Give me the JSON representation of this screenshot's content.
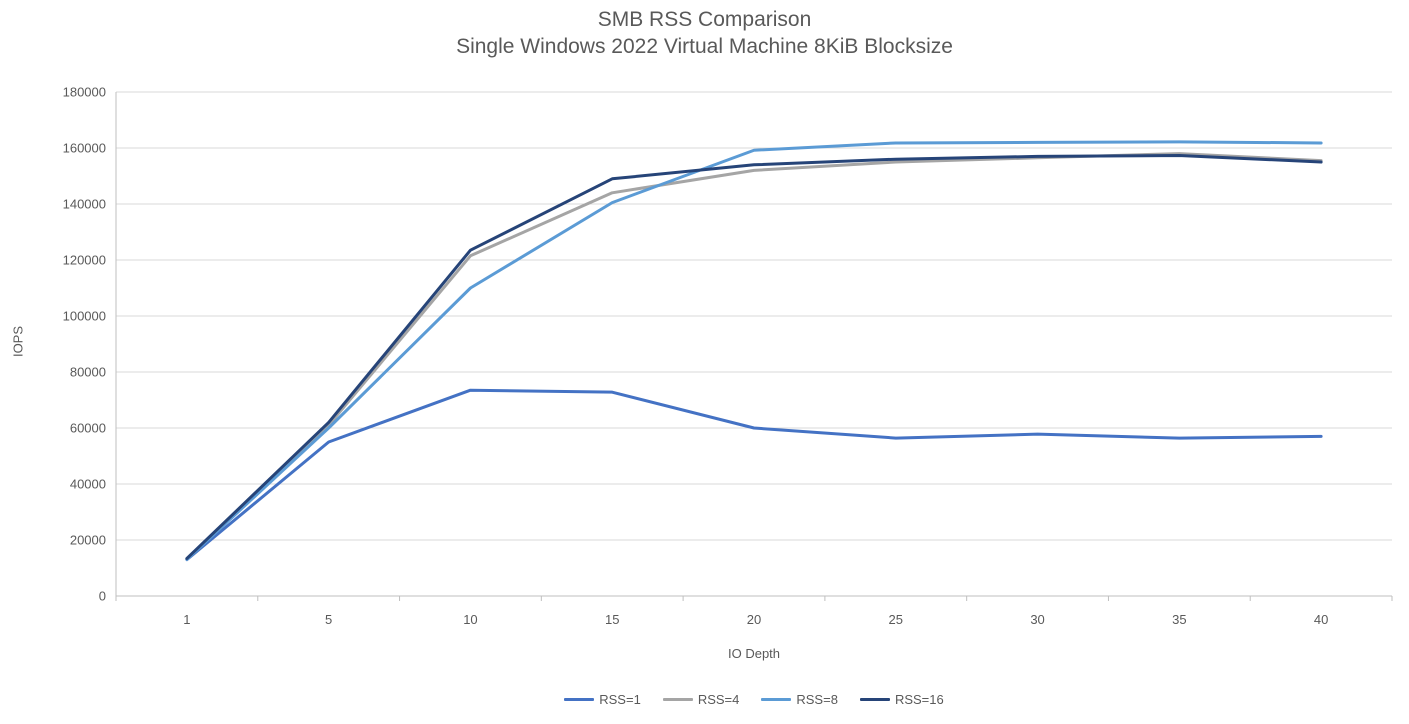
{
  "chart_data": {
    "type": "line",
    "title": "SMB RSS Comparison",
    "subtitle": "Single Windows 2022 Virtual Machine 8KiB Blocksize",
    "xlabel": "IO Depth",
    "ylabel": "IOPS",
    "categories": [
      "1",
      "5",
      "10",
      "15",
      "20",
      "25",
      "30",
      "35",
      "40"
    ],
    "series": [
      {
        "name": "RSS=1",
        "color": "#4472C4",
        "values": [
          13000,
          55000,
          73500,
          72800,
          60000,
          56400,
          57800,
          56400,
          57000
        ]
      },
      {
        "name": "RSS=4",
        "color": "#A5A5A5",
        "values": [
          13200,
          61000,
          121500,
          144000,
          152000,
          155000,
          156500,
          158000,
          155500
        ]
      },
      {
        "name": "RSS=8",
        "color": "#5B9BD5",
        "values": [
          13100,
          60000,
          110000,
          140500,
          159200,
          161800,
          162000,
          162200,
          161800
        ]
      },
      {
        "name": "RSS=16",
        "color": "#264478",
        "values": [
          13400,
          62000,
          123500,
          149000,
          154000,
          156000,
          157000,
          157300,
          155000
        ]
      }
    ],
    "ylim": [
      0,
      180000
    ],
    "ytick_step": 20000,
    "ytick_labels": [
      "0",
      "20000",
      "40000",
      "60000",
      "80000",
      "100000",
      "120000",
      "140000",
      "160000",
      "180000"
    ],
    "grid": "horizontal",
    "legend_position": "bottom",
    "line_width": 3,
    "gridline_color": "#D9D9D9",
    "axis_color": "#BFBFBF",
    "text_color": "#595959",
    "background_color": "#FFFFFF"
  }
}
